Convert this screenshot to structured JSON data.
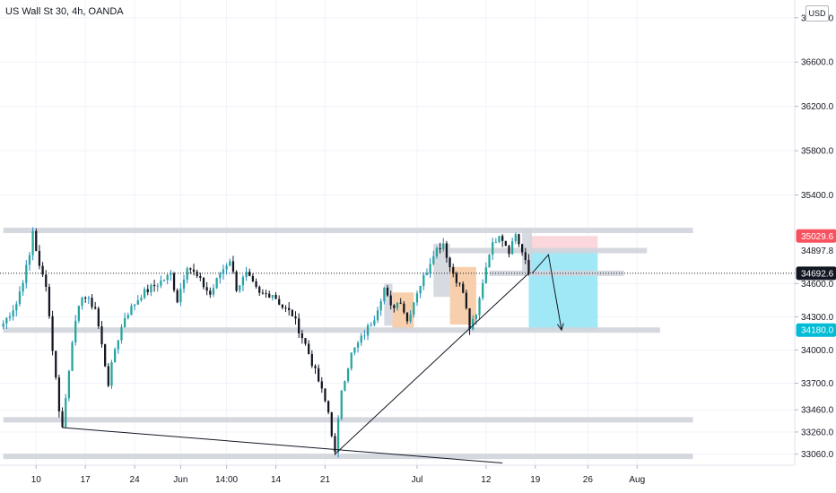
{
  "header": {
    "title": "US Wall St 30, 4h, OANDA",
    "currency": "USD"
  },
  "chart_data": {
    "type": "candlestick",
    "xlim": [
      -1,
      241
    ],
    "ylim": [
      32960,
      37160
    ],
    "x_ticks": [
      {
        "i": 10,
        "label": "10"
      },
      {
        "i": 25,
        "label": "17"
      },
      {
        "i": 40,
        "label": "24"
      },
      {
        "i": 54,
        "label": "Jun"
      },
      {
        "i": 68,
        "label": "14:00"
      },
      {
        "i": 83,
        "label": "14"
      },
      {
        "i": 98,
        "label": "21"
      },
      {
        "i": 126,
        "label": "Jul"
      },
      {
        "i": 147,
        "label": "12"
      },
      {
        "i": 162,
        "label": "19"
      },
      {
        "i": 178,
        "label": "26"
      },
      {
        "i": 193,
        "label": "Aug"
      }
    ],
    "y_ticks": [
      {
        "value": 37000,
        "label": "37000.0"
      },
      {
        "value": 36600,
        "label": "36600.0"
      },
      {
        "value": 36200,
        "label": "36200.0"
      },
      {
        "value": 35800,
        "label": "35800.0"
      },
      {
        "value": 35400,
        "label": "35400.0"
      },
      {
        "value": 34600,
        "label": "34600.0"
      },
      {
        "value": 34300,
        "label": "34300.0"
      },
      {
        "value": 34000,
        "label": "34000.0"
      },
      {
        "value": 33700,
        "label": "33700.0"
      },
      {
        "value": 33460,
        "label": "33460.0"
      },
      {
        "value": 33260,
        "label": "33260.0"
      },
      {
        "value": 33060,
        "label": "33060.0"
      }
    ],
    "price_labels": [
      {
        "value": 35029.6,
        "label": "35029.6",
        "color": "#f7525f",
        "text_color": "#ffffff"
      },
      {
        "value": 34897.8,
        "label": "34897.8",
        "color": "#ffffff",
        "text_color": "#131722"
      },
      {
        "value": 34692.6,
        "label": "34692.6",
        "color": "#131722",
        "text_color": "#ffffff"
      },
      {
        "value": 34180.0,
        "label": "34180.0",
        "color": "#00bcd4",
        "text_color": "#ffffff"
      }
    ],
    "current_price": 34692.6,
    "anchors": [
      [
        0,
        34240
      ],
      [
        4,
        34420
      ],
      [
        8,
        34850
      ],
      [
        9,
        35080
      ],
      [
        11,
        34740
      ],
      [
        13,
        34600
      ],
      [
        15,
        34010
      ],
      [
        17,
        33470
      ],
      [
        18,
        33300
      ],
      [
        21,
        34100
      ],
      [
        24,
        34500
      ],
      [
        28,
        34380
      ],
      [
        32,
        33700
      ],
      [
        34,
        34010
      ],
      [
        37,
        34300
      ],
      [
        42,
        34500
      ],
      [
        47,
        34600
      ],
      [
        51,
        34680
      ],
      [
        53,
        34450
      ],
      [
        56,
        34770
      ],
      [
        60,
        34620
      ],
      [
        63,
        34500
      ],
      [
        66,
        34690
      ],
      [
        69,
        34820
      ],
      [
        71,
        34560
      ],
      [
        74,
        34680
      ],
      [
        78,
        34500
      ],
      [
        82,
        34510
      ],
      [
        85,
        34390
      ],
      [
        88,
        34320
      ],
      [
        92,
        34050
      ],
      [
        96,
        33720
      ],
      [
        99,
        33440
      ],
      [
        101,
        33060
      ],
      [
        103,
        33650
      ],
      [
        106,
        33960
      ],
      [
        110,
        34150
      ],
      [
        113,
        34300
      ],
      [
        116,
        34560
      ],
      [
        118,
        34380
      ],
      [
        121,
        34450
      ],
      [
        123,
        34260
      ],
      [
        126,
        34530
      ],
      [
        129,
        34720
      ],
      [
        131,
        34880
      ],
      [
        134,
        34970
      ],
      [
        136,
        34750
      ],
      [
        138,
        34640
      ],
      [
        140,
        34520
      ],
      [
        142,
        34200
      ],
      [
        144,
        34300
      ],
      [
        146,
        34620
      ],
      [
        148,
        34890
      ],
      [
        151,
        35060
      ],
      [
        154,
        34900
      ],
      [
        156,
        35050
      ],
      [
        158,
        34880
      ],
      [
        160,
        34690
      ]
    ],
    "colors": {
      "up": "#26a69a",
      "down": "#131722",
      "up_wick": "#1e88c7",
      "blue": "#2962ff"
    },
    "zones": [
      {
        "x0": 160,
        "x1": 181,
        "y0": 34897.8,
        "y1": 35029.6,
        "color": "#f8d0d3"
      },
      {
        "x0": 160,
        "x1": 181,
        "y0": 34180.0,
        "y1": 34897.8,
        "color": "#90e4f5"
      },
      {
        "x0": 116,
        "x1": 118.5,
        "y0": 34220,
        "y1": 34600,
        "color": "#d1d4dc"
      },
      {
        "x0": 118.5,
        "x1": 125,
        "y0": 34180,
        "y1": 34520,
        "color": "#f6c79d"
      },
      {
        "x0": 131,
        "x1": 136,
        "y0": 34480,
        "y1": 34960,
        "color": "#d1d4dc"
      },
      {
        "x0": 136,
        "x1": 144,
        "y0": 34230,
        "y1": 34750,
        "color": "#f6c79d"
      },
      {
        "x0": 158,
        "x1": 161,
        "y0": 34700,
        "y1": 35090,
        "color": "#d1d4dc"
      }
    ],
    "levels": [
      {
        "y": 35080,
        "x0": 0,
        "x1": 210
      },
      {
        "y": 34180,
        "x0": 0,
        "x1": 200
      },
      {
        "y": 33370,
        "x0": 0,
        "x1": 210
      },
      {
        "y": 33040,
        "x0": 0,
        "x1": 210
      },
      {
        "y": 34897.8,
        "x0": 131,
        "x1": 196
      },
      {
        "y": 34692.6,
        "x0": 148,
        "x1": 189
      }
    ],
    "trendlines": [
      {
        "x0": 101,
        "y0": 33060,
        "x1": 160,
        "y1": 34692.6
      },
      {
        "x0": 18,
        "y0": 33300,
        "x1": 152,
        "y1": 32980
      }
    ],
    "arrows": [
      {
        "points": [
          [
            161,
            34692.6
          ],
          [
            166,
            34860
          ],
          [
            170,
            34180
          ]
        ]
      }
    ]
  }
}
